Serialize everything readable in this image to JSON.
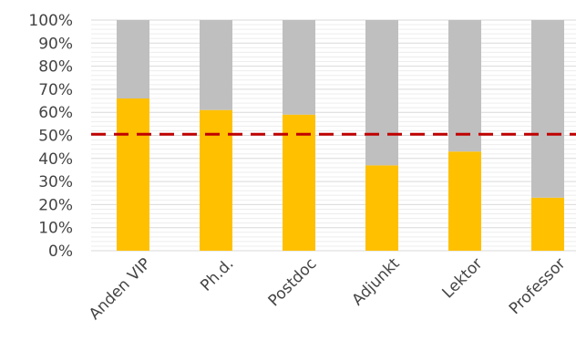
{
  "chart_data": {
    "type": "bar",
    "stacked": true,
    "categories": [
      "Anden VIP",
      "Ph.d.",
      "Postdoc",
      "Adjunkt",
      "Lektor",
      "Professor"
    ],
    "series": [
      {
        "values": [
          66,
          61,
          59,
          37,
          43,
          23
        ],
        "color": "#FFC000"
      },
      {
        "values": [
          34,
          39,
          41,
          63,
          57,
          77
        ],
        "color": "#BFBFBF"
      }
    ],
    "y_ticks": [
      "0%",
      "10%",
      "20%",
      "30%",
      "40%",
      "50%",
      "60%",
      "70%",
      "80%",
      "90%",
      "100%"
    ],
    "ylim": [
      0,
      100
    ],
    "reference_line": {
      "value": 50.5,
      "color": "#C00000",
      "style": "dashed"
    },
    "grid": true,
    "legend": "none"
  }
}
